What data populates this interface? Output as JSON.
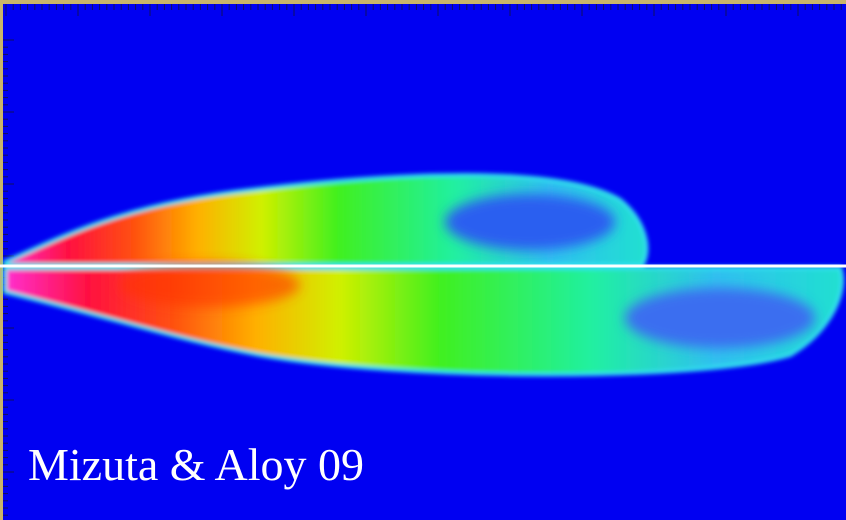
{
  "caption": "Mizuta & Aloy 09"
}
